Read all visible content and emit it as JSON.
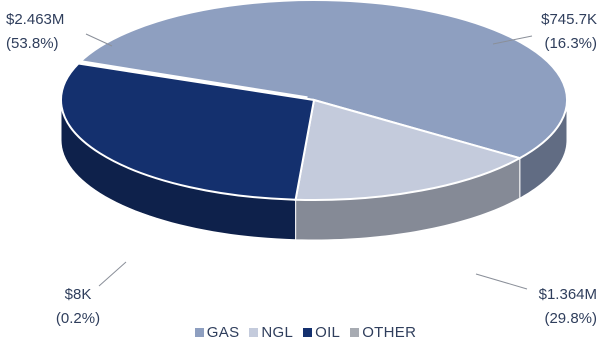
{
  "chart_data": {
    "type": "pie",
    "title": "",
    "categories": [
      "GAS",
      "NGL",
      "OIL",
      "OTHER"
    ],
    "values": [
      2463000,
      745700,
      1364000,
      8000
    ],
    "labels": [
      "$2.463M",
      "$745.7K",
      "$1.364M",
      "$8K"
    ],
    "percents": [
      "(53.8%)",
      "(16.3%)",
      "(29.8%)",
      "(0.2%)"
    ],
    "colors": [
      "#8e9fc0",
      "#c4cbdc",
      "#14306e",
      "#a7abb2"
    ],
    "legend_position": "bottom"
  }
}
